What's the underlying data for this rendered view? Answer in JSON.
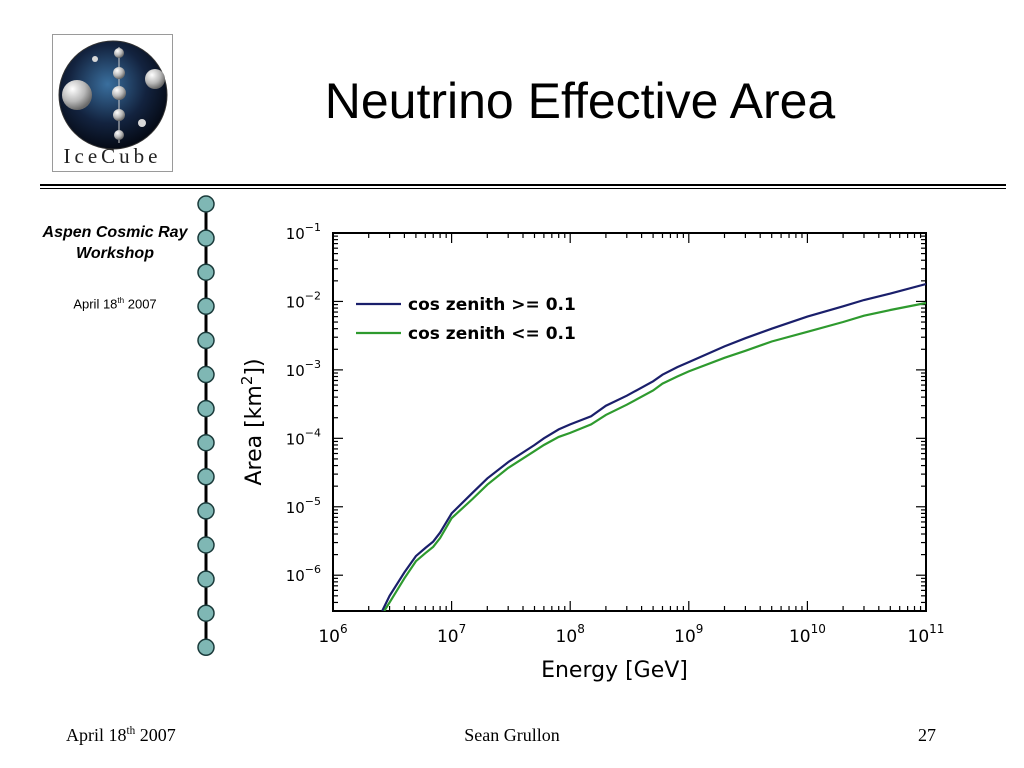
{
  "slide": {
    "title": "Neutrino Effective Area",
    "logo_text": "IceCube",
    "workshop": "Aspen Cosmic Ray Workshop",
    "side_date": {
      "prefix": "April 18",
      "sup": "th",
      "suffix": " 2007"
    },
    "footer": {
      "date": {
        "prefix": "April 18",
        "sup": "th",
        "suffix": " 2007"
      },
      "author": "Sean Grullon",
      "page": "27"
    }
  },
  "colors": {
    "series1": "#1a1f6b",
    "series2": "#2e9a2e",
    "chain_bead": "#7fb7b4"
  },
  "chart_data": {
    "type": "line",
    "xlabel": "Energy [GeV]",
    "ylabel_base": "Area [km",
    "ylabel_sup": "2",
    "ylabel_end": "])",
    "x_scale": "log",
    "y_scale": "log",
    "xlim": [
      1000000.0,
      100000000000.0
    ],
    "ylim": [
      3e-07,
      0.1
    ],
    "x_ticks": [
      {
        "b": "10",
        "e": "6",
        "v": 6
      },
      {
        "b": "10",
        "e": "7",
        "v": 7
      },
      {
        "b": "10",
        "e": "8",
        "v": 8
      },
      {
        "b": "10",
        "e": "9",
        "v": 9
      },
      {
        "b": "10",
        "e": "10",
        "v": 10
      },
      {
        "b": "10",
        "e": "11",
        "v": 11
      }
    ],
    "y_ticks": [
      {
        "b": "10",
        "e": "−1",
        "v": -1
      },
      {
        "b": "10",
        "e": "−2",
        "v": -2
      },
      {
        "b": "10",
        "e": "−3",
        "v": -3
      },
      {
        "b": "10",
        "e": "−4",
        "v": -4
      },
      {
        "b": "10",
        "e": "−5",
        "v": -5
      },
      {
        "b": "10",
        "e": "−6",
        "v": -6
      }
    ],
    "legend_position": "top-left",
    "series": [
      {
        "name": "cos zenith >= 0.1",
        "x": [
          2600000.0,
          3000000.0,
          4000000.0,
          5000000.0,
          6000000.0,
          7000000.0,
          8000000.0,
          10000000.0,
          15000000.0,
          20000000.0,
          30000000.0,
          50000000.0,
          60000000.0,
          80000000.0,
          100000000.0,
          150000000.0,
          200000000.0,
          300000000.0,
          500000000.0,
          600000000.0,
          800000000.0,
          1000000000.0,
          2000000000.0,
          3000000000.0,
          5000000000.0,
          10000000000.0,
          20000000000.0,
          30000000000.0,
          50000000000.0,
          100000000000.0
        ],
        "y": [
          3e-07,
          5e-07,
          1.1e-06,
          1.9e-06,
          2.5e-06,
          3.1e-06,
          4.2e-06,
          8e-06,
          1.6e-05,
          2.6e-05,
          4.5e-05,
          8e-05,
          0.0001,
          0.000135,
          0.00016,
          0.00021,
          0.0003,
          0.00042,
          0.00068,
          0.00085,
          0.0011,
          0.0013,
          0.0022,
          0.0029,
          0.004,
          0.006,
          0.0085,
          0.0105,
          0.013,
          0.018
        ]
      },
      {
        "name": "cos zenith <= 0.1",
        "x": [
          2700000.0,
          3000000.0,
          4000000.0,
          5000000.0,
          6000000.0,
          7000000.0,
          8000000.0,
          10000000.0,
          15000000.0,
          20000000.0,
          30000000.0,
          50000000.0,
          60000000.0,
          80000000.0,
          100000000.0,
          150000000.0,
          200000000.0,
          300000000.0,
          500000000.0,
          600000000.0,
          800000000.0,
          1000000000.0,
          2000000000.0,
          3000000000.0,
          5000000000.0,
          10000000000.0,
          20000000000.0,
          30000000000.0,
          50000000000.0,
          100000000000.0
        ],
        "y": [
          3e-07,
          4e-07,
          9e-07,
          1.6e-06,
          2.1e-06,
          2.6e-06,
          3.5e-06,
          6.8e-06,
          1.3e-05,
          2.1e-05,
          3.7e-05,
          6.5e-05,
          8e-05,
          0.000105,
          0.00012,
          0.00016,
          0.00022,
          0.00031,
          0.0005,
          0.00063,
          0.0008,
          0.00095,
          0.0015,
          0.0019,
          0.0026,
          0.0036,
          0.005,
          0.0062,
          0.0075,
          0.0095
        ]
      }
    ]
  }
}
